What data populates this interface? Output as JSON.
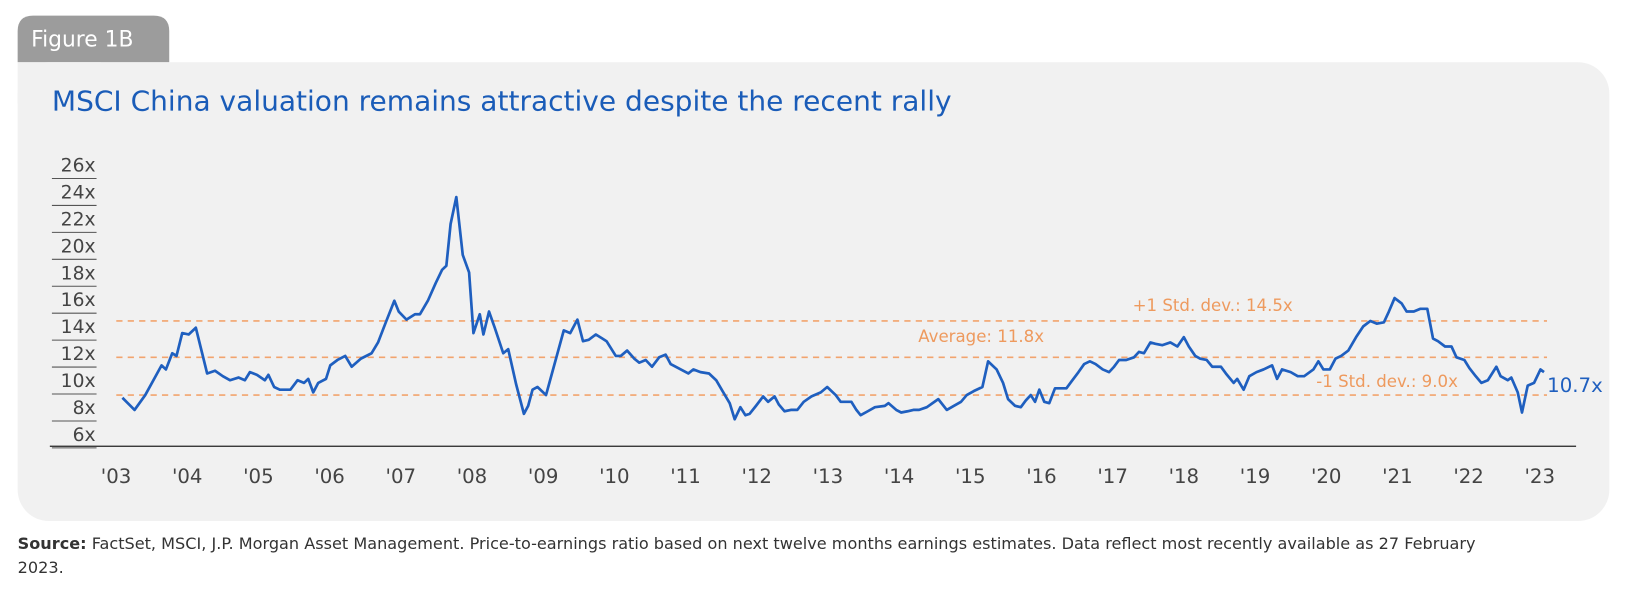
{
  "figure_label": "Figure 1B",
  "source": {
    "label": "Source:",
    "text": "FactSet, MSCI, J.P. Morgan Asset Management. Price-to-earnings ratio based on next twelve months earnings estimates. Data reflect most recently available as 27 February 2023."
  },
  "chart_data": {
    "type": "line",
    "title": "MSCI China valuation remains attractive despite the recent rally",
    "color": "#1f5fbf",
    "xlim": [
      2002.07,
      2023.51
    ],
    "xticks": [
      {
        "value": 2003,
        "label": "'03"
      },
      {
        "value": 2004,
        "label": "'04"
      },
      {
        "value": 2005,
        "label": "'05"
      },
      {
        "value": 2006,
        "label": "'06"
      },
      {
        "value": 2007,
        "label": "'07"
      },
      {
        "value": 2008,
        "label": "'08"
      },
      {
        "value": 2009,
        "label": "'09"
      },
      {
        "value": 2010,
        "label": "'10"
      },
      {
        "value": 2011,
        "label": "'11"
      },
      {
        "value": 2012,
        "label": "'12"
      },
      {
        "value": 2013,
        "label": "'13"
      },
      {
        "value": 2014,
        "label": "'14"
      },
      {
        "value": 2015,
        "label": "'15"
      },
      {
        "value": 2016,
        "label": "'16"
      },
      {
        "value": 2017,
        "label": "'17"
      },
      {
        "value": 2018,
        "label": "'18"
      },
      {
        "value": 2019,
        "label": "'19"
      },
      {
        "value": 2020,
        "label": "'20"
      },
      {
        "value": 2021,
        "label": "'21"
      },
      {
        "value": 2022,
        "label": "'22"
      },
      {
        "value": 2023,
        "label": "'23"
      }
    ],
    "ylim": [
      5.2,
      26
    ],
    "yticks": [
      {
        "value": 6,
        "label": "6x"
      },
      {
        "value": 8,
        "label": "8x"
      },
      {
        "value": 10,
        "label": "10x"
      },
      {
        "value": 12,
        "label": "12x"
      },
      {
        "value": 14,
        "label": "14x"
      },
      {
        "value": 16,
        "label": "16x"
      },
      {
        "value": 18,
        "label": "18x"
      },
      {
        "value": 20,
        "label": "20x"
      },
      {
        "value": 22,
        "label": "22x"
      },
      {
        "value": 24,
        "label": "24x"
      },
      {
        "value": 26,
        "label": "26x"
      }
    ],
    "reference_lines": [
      {
        "value": 14.5,
        "label": "+1 Std. dev.: 14.5x"
      },
      {
        "value": 11.8,
        "label": "Average: 11.8x"
      },
      {
        "value": 9.0,
        "label": "-1 Std. dev.: 9.0x"
      }
    ],
    "end_label": "10.7x",
    "x": [
      2003.09,
      2003.26,
      2003.41,
      2003.64,
      2003.7,
      2003.79,
      2003.85,
      2003.93,
      2004.02,
      2004.12,
      2004.21,
      2004.28,
      2004.39,
      2004.5,
      2004.6,
      2004.72,
      2004.81,
      2004.88,
      2004.98,
      2005.09,
      2005.14,
      2005.22,
      2005.3,
      2005.45,
      2005.55,
      2005.64,
      2005.7,
      2005.77,
      2005.84,
      2005.95,
      2006.01,
      2006.11,
      2006.22,
      2006.31,
      2006.44,
      2006.59,
      2006.68,
      2006.79,
      2006.91,
      2006.97,
      2007.08,
      2007.2,
      2007.27,
      2007.38,
      2007.49,
      2007.58,
      2007.64,
      2007.7,
      2007.78,
      2007.87,
      2007.96,
      2008.02,
      2008.11,
      2008.16,
      2008.24,
      2008.32,
      2008.44,
      2008.51,
      2008.62,
      2008.73,
      2008.79,
      2008.85,
      2008.92,
      2009.04,
      2009.17,
      2009.29,
      2009.38,
      2009.48,
      2009.56,
      2009.64,
      2009.74,
      2009.83,
      2009.89,
      2010.02,
      2010.09,
      2010.18,
      2010.28,
      2010.35,
      2010.44,
      2010.53,
      2010.63,
      2010.72,
      2010.79,
      2010.86,
      2010.97,
      2011.04,
      2011.11,
      2011.21,
      2011.33,
      2011.43,
      2011.52,
      2011.62,
      2011.69,
      2011.77,
      2011.84,
      2011.9,
      2011.99,
      2012.09,
      2012.16,
      2012.25,
      2012.31,
      2012.39,
      2012.48,
      2012.57,
      2012.66,
      2012.77,
      2012.9,
      2012.99,
      2013.11,
      2013.18,
      2013.33,
      2013.4,
      2013.46,
      2013.56,
      2013.66,
      2013.8,
      2013.85,
      2013.96,
      2014.03,
      2014.12,
      2014.2,
      2014.28,
      2014.39,
      2014.47,
      2014.55,
      2014.67,
      2014.77,
      2014.87,
      2014.95,
      2015.05,
      2015.17,
      2015.25,
      2015.37,
      2015.46,
      2015.53,
      2015.63,
      2015.71,
      2015.78,
      2015.85,
      2015.91,
      2015.97,
      2016.04,
      2016.11,
      2016.19,
      2016.35,
      2016.42,
      2016.52,
      2016.6,
      2016.68,
      2016.76,
      2016.86,
      2016.95,
      2017.02,
      2017.09,
      2017.19,
      2017.3,
      2017.37,
      2017.44,
      2017.53,
      2017.6,
      2017.7,
      2017.81,
      2017.91,
      2018.0,
      2018.07,
      2018.16,
      2018.23,
      2018.32,
      2018.4,
      2018.52,
      2018.59,
      2018.7,
      2018.75,
      2018.84,
      2018.92,
      2019.02,
      2019.12,
      2019.24,
      2019.31,
      2019.38,
      2019.5,
      2019.6,
      2019.69,
      2019.82,
      2019.89,
      2019.96,
      2020.05,
      2020.13,
      2020.21,
      2020.31,
      2020.42,
      2020.52,
      2020.62,
      2020.71,
      2020.81,
      2020.88,
      2020.96,
      2021.06,
      2021.13,
      2021.23,
      2021.32,
      2021.42,
      2021.5,
      2021.57,
      2021.67,
      2021.76,
      2021.83,
      2021.94,
      2022.01,
      2022.1,
      2022.18,
      2022.27,
      2022.39,
      2022.45,
      2022.55,
      2022.6,
      2022.69,
      2022.75,
      2022.83,
      2022.92,
      2023.01,
      2023.06
    ],
    "values": [
      8.8,
      7.9,
      9.0,
      11.2,
      10.9,
      12.1,
      11.9,
      13.6,
      13.5,
      14.0,
      12.1,
      10.6,
      10.8,
      10.4,
      10.1,
      10.3,
      10.1,
      10.7,
      10.5,
      10.1,
      10.5,
      9.6,
      9.4,
      9.4,
      10.1,
      9.9,
      10.2,
      9.2,
      9.9,
      10.2,
      11.2,
      11.6,
      11.9,
      11.1,
      11.7,
      12.1,
      12.9,
      14.4,
      16.0,
      15.2,
      14.6,
      15.0,
      15.0,
      16.0,
      17.3,
      18.3,
      18.6,
      21.7,
      23.7,
      19.4,
      18.1,
      13.6,
      15.0,
      13.5,
      15.2,
      14.0,
      12.1,
      12.4,
      9.8,
      7.6,
      8.2,
      9.4,
      9.6,
      9.0,
      11.5,
      13.8,
      13.6,
      14.6,
      13.0,
      13.1,
      13.5,
      13.2,
      13.0,
      11.9,
      11.9,
      12.3,
      11.7,
      11.4,
      11.6,
      11.1,
      11.8,
      12.0,
      11.3,
      11.1,
      10.8,
      10.6,
      10.9,
      10.7,
      10.6,
      10.1,
      9.3,
      8.4,
      7.2,
      8.1,
      7.5,
      7.6,
      8.2,
      8.9,
      8.5,
      8.9,
      8.3,
      7.8,
      7.9,
      7.9,
      8.5,
      8.9,
      9.2,
      9.6,
      9.0,
      8.5,
      8.5,
      7.9,
      7.5,
      7.8,
      8.1,
      8.2,
      8.4,
      7.9,
      7.7,
      7.8,
      7.9,
      7.9,
      8.1,
      8.4,
      8.7,
      7.9,
      8.2,
      8.5,
      9.0,
      9.3,
      9.6,
      11.5,
      10.9,
      9.9,
      8.7,
      8.2,
      8.1,
      8.6,
      9.0,
      8.5,
      9.4,
      8.5,
      8.4,
      9.5,
      9.5,
      10.0,
      10.7,
      11.3,
      11.5,
      11.3,
      10.9,
      10.7,
      11.1,
      11.6,
      11.6,
      11.8,
      12.2,
      12.1,
      12.9,
      12.8,
      12.7,
      12.9,
      12.6,
      13.3,
      12.6,
      11.9,
      11.7,
      11.6,
      11.1,
      11.1,
      10.6,
      9.9,
      10.2,
      9.4,
      10.4,
      10.7,
      10.9,
      11.2,
      10.2,
      10.9,
      10.7,
      10.4,
      10.4,
      10.9,
      11.5,
      10.9,
      10.9,
      11.7,
      11.9,
      12.3,
      13.3,
      14.1,
      14.5,
      14.3,
      14.4,
      15.2,
      16.2,
      15.8,
      15.2,
      15.2,
      15.4,
      15.4,
      13.2,
      13.0,
      12.6,
      12.6,
      11.8,
      11.6,
      11.0,
      10.4,
      9.9,
      10.1,
      11.1,
      10.4,
      10.1,
      10.3,
      9.2,
      7.7,
      9.7,
      9.9,
      10.9,
      10.7
    ]
  }
}
